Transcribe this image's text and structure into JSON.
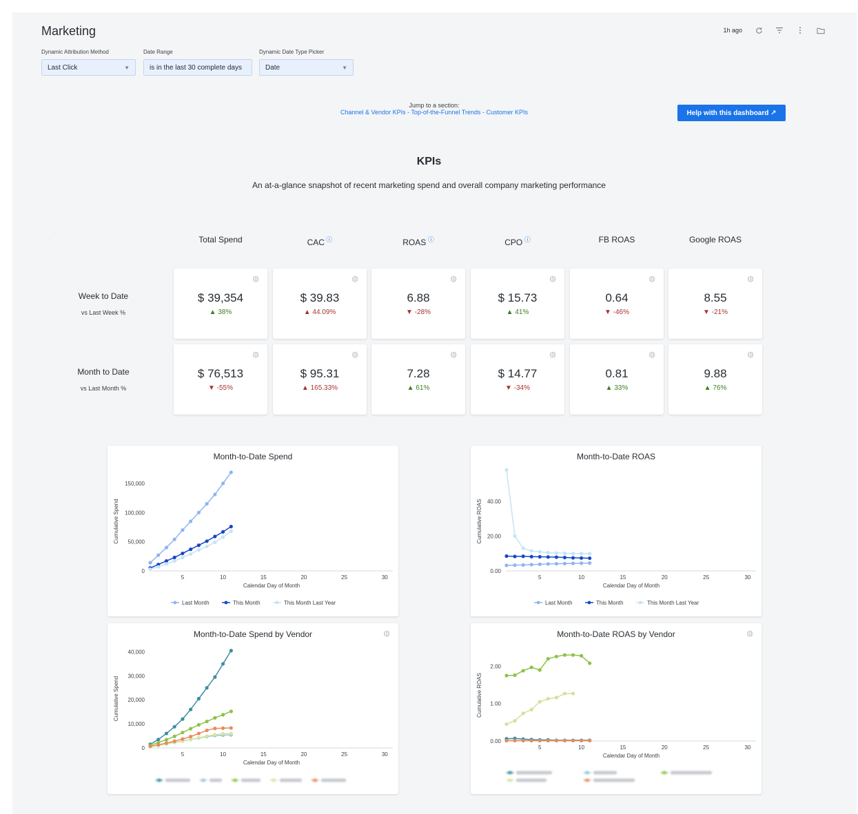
{
  "header": {
    "title": "Marketing",
    "updated": "1h ago",
    "icons": [
      "refresh-icon",
      "filter-icon",
      "more-vert-icon",
      "folder-icon"
    ]
  },
  "filters": [
    {
      "label": "Dynamic Attribution Method",
      "value": "Last Click"
    },
    {
      "label": "Date Range",
      "value": "is in the last 30 complete days"
    },
    {
      "label": "Dynamic Date Type Picker",
      "value": "Date"
    }
  ],
  "jump": {
    "label": "Jump to a section:",
    "links": "Channel & Vendor KPIs - Top-of-the-Funnel Trends - Customer KPIs"
  },
  "help_button": "Help with this dashboard ↗",
  "kpis": {
    "title": "KPIs",
    "subtitle": "An at-a-glance snapshot of recent marketing spend and overall company marketing performance",
    "columns": [
      {
        "label": "Total Spend",
        "info": false
      },
      {
        "label": "CAC",
        "info": true
      },
      {
        "label": "ROAS",
        "info": true
      },
      {
        "label": "CPO",
        "info": true
      },
      {
        "label": "FB ROAS",
        "info": false
      },
      {
        "label": "Google ROAS",
        "info": false
      }
    ],
    "rows": [
      {
        "label": "Week to Date",
        "sub": "vs Last Week %",
        "tiles": [
          {
            "value": "$ 39,354",
            "change": "▲ 38%",
            "good": true
          },
          {
            "value": "$ 39.83",
            "change": "▲ 44.09%",
            "good": false
          },
          {
            "value": "6.88",
            "change": "▼ -28%",
            "good": false
          },
          {
            "value": "$ 15.73",
            "change": "▲ 41%",
            "good": true
          },
          {
            "value": "0.64",
            "change": "▼ -46%",
            "good": false
          },
          {
            "value": "8.55",
            "change": "▼ -21%",
            "good": false
          }
        ]
      },
      {
        "label": "Month to Date",
        "sub": "vs Last Month %",
        "tiles": [
          {
            "value": "$ 76,513",
            "change": "▼ -55%",
            "good": false
          },
          {
            "value": "$ 95.31",
            "change": "▲ 165.33%",
            "good": false
          },
          {
            "value": "7.28",
            "change": "▲ 61%",
            "good": true
          },
          {
            "value": "$ 14.77",
            "change": "▼ -34%",
            "good": false
          },
          {
            "value": "0.81",
            "change": "▲ 33%",
            "good": true
          },
          {
            "value": "9.88",
            "change": "▲ 76%",
            "good": true
          }
        ]
      }
    ],
    "colors": {
      "up_good": "#3f7d20",
      "down_bad": "#a83232"
    }
  },
  "chart_data": [
    {
      "type": "line",
      "title": "Month-to-Date Spend",
      "xlabel": "Calendar Day of Month",
      "ylabel": "Cumulative Spend",
      "xlim": [
        1,
        31
      ],
      "ylim": [
        0,
        170000
      ],
      "xticks": [
        5,
        10,
        15,
        20,
        25,
        30
      ],
      "yticks": [
        0,
        50000,
        100000,
        150000
      ],
      "ytick_labels": [
        "0",
        "50,000",
        "100,000",
        "150,000"
      ],
      "legend_position": "bottom",
      "series": [
        {
          "name": "Last Month",
          "color": "#8fb4f2",
          "x": [
            1,
            2,
            3,
            4,
            5,
            6,
            7,
            8,
            9,
            10,
            11
          ],
          "y": [
            14000,
            27000,
            40000,
            54000,
            70000,
            85000,
            100000,
            115000,
            131000,
            150000,
            169000
          ]
        },
        {
          "name": "This Month",
          "color": "#1746c9",
          "x": [
            1,
            2,
            3,
            4,
            5,
            6,
            7,
            8,
            9,
            10,
            11
          ],
          "y": [
            5000,
            11000,
            17000,
            23000,
            30000,
            37000,
            44000,
            51000,
            59000,
            67000,
            76000
          ]
        },
        {
          "name": "This Month Last Year",
          "color": "#c6e3f7",
          "x": [
            1,
            2,
            3,
            4,
            5,
            6,
            7,
            8,
            9,
            10,
            11
          ],
          "y": [
            3000,
            7000,
            12000,
            17000,
            23000,
            29000,
            36000,
            42000,
            49000,
            58000,
            68000
          ]
        }
      ]
    },
    {
      "type": "line",
      "title": "Month-to-Date ROAS",
      "xlabel": "Calendar Day of Month",
      "ylabel": "Cumulative ROAS",
      "xlim": [
        1,
        31
      ],
      "ylim": [
        0,
        57
      ],
      "xticks": [
        5,
        10,
        15,
        20,
        25,
        30
      ],
      "yticks": [
        0,
        20,
        40
      ],
      "ytick_labels": [
        "0.00",
        "20.00",
        "40.00"
      ],
      "legend_position": "bottom",
      "series": [
        {
          "name": "Last Month",
          "color": "#8fb4f2",
          "x": [
            1,
            2,
            3,
            4,
            5,
            6,
            7,
            8,
            9,
            10,
            11
          ],
          "y": [
            3.2,
            3.3,
            3.4,
            3.6,
            3.8,
            4.0,
            4.1,
            4.2,
            4.3,
            4.4,
            4.5
          ]
        },
        {
          "name": "This Month",
          "color": "#1746c9",
          "x": [
            1,
            2,
            3,
            4,
            5,
            6,
            7,
            8,
            9,
            10,
            11
          ],
          "y": [
            8.5,
            8.3,
            8.4,
            8.2,
            8.1,
            8.0,
            7.9,
            7.7,
            7.5,
            7.4,
            7.3
          ]
        },
        {
          "name": "This Month Last Year",
          "color": "#c6e3f7",
          "x": [
            1,
            2,
            3,
            4,
            5,
            6,
            7,
            8,
            9,
            10,
            11
          ],
          "y": [
            58,
            20,
            13,
            11.5,
            11,
            10.5,
            10.3,
            10.1,
            10,
            10,
            9.9
          ]
        }
      ]
    },
    {
      "type": "line",
      "title": "Month-to-Date Spend by Vendor",
      "xlabel": "Calendar Day of Month",
      "ylabel": "Cumulative Spend",
      "xlim": [
        1,
        31
      ],
      "ylim": [
        0,
        41000
      ],
      "xticks": [
        5,
        10,
        15,
        20,
        25,
        30
      ],
      "yticks": [
        0,
        10000,
        20000,
        30000,
        40000
      ],
      "ytick_labels": [
        "0",
        "10,000",
        "20,000",
        "30,000",
        "40,000"
      ],
      "legend_position": "bottom",
      "series": [
        {
          "color": "#3b8fa0",
          "x": [
            1,
            2,
            3,
            4,
            5,
            6,
            7,
            8,
            9,
            10,
            11
          ],
          "y": [
            1500,
            3500,
            6000,
            8800,
            12000,
            16000,
            20500,
            25000,
            29500,
            35000,
            40500
          ]
        },
        {
          "color": "#9fc3d6",
          "x": [
            1,
            2,
            3,
            4,
            5,
            6,
            7,
            8,
            9,
            10,
            11
          ],
          "y": [
            600,
            1100,
            1700,
            2300,
            2900,
            3500,
            4100,
            4700,
            5100,
            5300,
            5400
          ]
        },
        {
          "color": "#8dc24a",
          "x": [
            1,
            2,
            3,
            4,
            5,
            6,
            7,
            8,
            9,
            10,
            11
          ],
          "y": [
            1100,
            2200,
            3400,
            4800,
            6400,
            8000,
            9600,
            11000,
            12500,
            13800,
            15200
          ]
        },
        {
          "color": "#d3e6a6",
          "x": [
            1,
            2,
            3,
            4,
            5,
            6,
            7,
            8,
            9,
            10,
            11
          ],
          "y": [
            500,
            1000,
            1600,
            2200,
            2800,
            3500,
            4200,
            4900,
            5500,
            5900,
            6000
          ]
        },
        {
          "color": "#e88a5c",
          "x": [
            1,
            2,
            3,
            4,
            5,
            6,
            7,
            8,
            9,
            10,
            11
          ],
          "y": [
            700,
            1300,
            2000,
            2800,
            3700,
            4700,
            6000,
            7300,
            8100,
            8200,
            8300
          ]
        }
      ]
    },
    {
      "type": "line",
      "title": "Month-to-Date ROAS by Vendor",
      "xlabel": "Calendar Day of Month",
      "ylabel": "Cumulative ROAS",
      "xlim": [
        1,
        31
      ],
      "ylim": [
        0,
        2.45
      ],
      "xticks": [
        5,
        10,
        15,
        20,
        25,
        30
      ],
      "yticks": [
        0,
        1,
        2
      ],
      "ytick_labels": [
        "0.00",
        "1.00",
        "2.00"
      ],
      "legend_position": "bottom",
      "series": [
        {
          "color": "#3b8fa0",
          "x": [
            1,
            2,
            3,
            4,
            5,
            6,
            7,
            8,
            9,
            10,
            11
          ],
          "y": [
            0.06,
            0.07,
            0.05,
            0.04,
            0.03,
            0.03,
            0.02,
            0.02,
            0.02,
            0.02,
            0.02
          ]
        },
        {
          "color": "#8fc8dc",
          "x": [
            1,
            2,
            3,
            4,
            5,
            6,
            7,
            8,
            9,
            10,
            11
          ],
          "y": [
            0.01,
            0.01,
            0.01,
            0.01,
            0.01,
            0.01,
            0.01,
            0.01,
            0.01,
            0.01,
            0.01
          ]
        },
        {
          "color": "#8dc24a",
          "x": [
            1,
            2,
            3,
            4,
            5,
            6,
            7,
            8,
            9,
            10,
            11
          ],
          "y": [
            1.75,
            1.76,
            1.88,
            1.97,
            1.9,
            2.2,
            2.26,
            2.3,
            2.3,
            2.28,
            2.08
          ]
        },
        {
          "color": "#cfe39a",
          "x": [
            1,
            2,
            3,
            4,
            5,
            6,
            7,
            8,
            9
          ],
          "y": [
            0.45,
            0.54,
            0.74,
            0.84,
            1.05,
            1.13,
            1.16,
            1.27,
            1.27
          ]
        },
        {
          "color": "#e88a5c",
          "x": [
            1,
            2,
            3,
            4,
            5,
            6,
            7,
            8,
            9,
            10,
            11
          ],
          "y": [
            0.01,
            0.01,
            0.01,
            0.01,
            0.01,
            0.01,
            0.01,
            0.01,
            0.01,
            0.01,
            0.01
          ]
        }
      ]
    }
  ]
}
